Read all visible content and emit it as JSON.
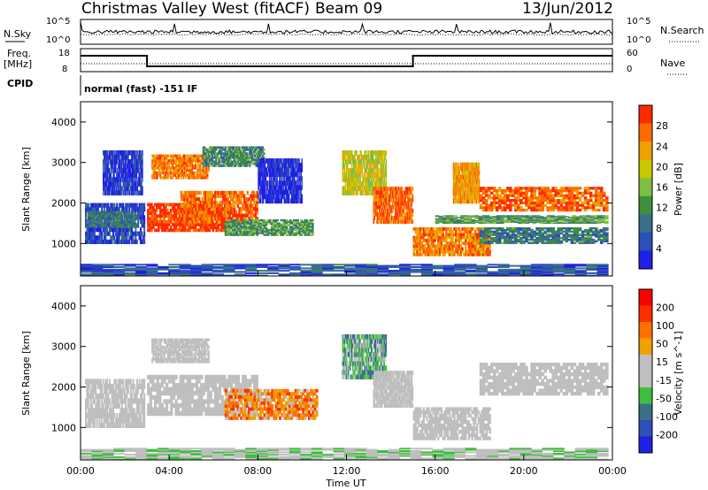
{
  "header": {
    "title": "Christmas Valley West (fitACF)",
    "beam": "Beam 09",
    "date": "13/Jun/2012"
  },
  "strips": {
    "nsky_label": "N.Sky",
    "nsky_ticks": [
      "10^5",
      "10^0"
    ],
    "nsearch_label": "N.Search",
    "nsearch_ticks": [
      "10^5",
      "10^0"
    ],
    "freq_label_1": "Freq.",
    "freq_label_2": "[MHz]",
    "freq_ticks": [
      "18",
      "8"
    ],
    "nave_label": "Nave",
    "nave_ticks": [
      "60",
      "0"
    ],
    "cpid_label": "CPID",
    "cpid_value": "normal (fast) -151 IF"
  },
  "colors": {
    "power_scale": [
      "#1f1fe6",
      "#2c4fb8",
      "#3a6f8a",
      "#3f8f3f",
      "#7fbf3f",
      "#c8c800",
      "#f0a000",
      "#ff6a00",
      "#ff2a00"
    ],
    "velocity_scale": [
      "#1f1fe6",
      "#2c4fb8",
      "#3a6f8a",
      "#3fbf3f",
      "#bfbfbf",
      "#bfbfbf",
      "#f0a000",
      "#ff7000",
      "#ff3000",
      "#ff0000"
    ]
  },
  "chart_data": [
    {
      "type": "heatmap",
      "name": "power",
      "ylabel": "Slant Range [km]",
      "xlabel": "Time UT",
      "xlim": [
        0,
        24
      ],
      "ylim": [
        200,
        4500
      ],
      "x_ticks": [
        "00:00",
        "04:00",
        "08:00",
        "12:00",
        "16:00",
        "20:00",
        "00:00"
      ],
      "y_ticks": [
        1000,
        2000,
        3000,
        4000
      ],
      "colorbar": {
        "label": "Power [dB]",
        "ticks": [
          "28",
          "24",
          "20",
          "16",
          "12",
          "8",
          "4"
        ]
      },
      "bands": [
        {
          "t0": 0.2,
          "t1": 2.9,
          "r0": 1000,
          "r1": 2000,
          "level": 0.15
        },
        {
          "t0": 0.3,
          "t1": 2.5,
          "r0": 1400,
          "r1": 1800,
          "level": 0.3
        },
        {
          "t0": 1.0,
          "t1": 2.8,
          "r0": 2200,
          "r1": 3300,
          "level": 0.1
        },
        {
          "t0": 3.0,
          "t1": 6.8,
          "r0": 1300,
          "r1": 2000,
          "level": 0.95
        },
        {
          "t0": 4.5,
          "t1": 8.0,
          "r0": 1500,
          "r1": 2300,
          "level": 0.85
        },
        {
          "t0": 3.2,
          "t1": 5.8,
          "r0": 2600,
          "r1": 3200,
          "level": 0.8
        },
        {
          "t0": 5.5,
          "t1": 8.3,
          "r0": 2900,
          "r1": 3400,
          "level": 0.35
        },
        {
          "t0": 6.5,
          "t1": 10.5,
          "r0": 1200,
          "r1": 1600,
          "level": 0.4
        },
        {
          "t0": 8.0,
          "t1": 10.0,
          "r0": 2000,
          "r1": 3100,
          "level": 0.05
        },
        {
          "t0": 11.8,
          "t1": 13.8,
          "r0": 2200,
          "r1": 3300,
          "level": 0.6
        },
        {
          "t0": 13.2,
          "t1": 15.0,
          "r0": 1500,
          "r1": 2400,
          "level": 0.85
        },
        {
          "t0": 15.0,
          "t1": 18.5,
          "r0": 700,
          "r1": 1400,
          "level": 0.8
        },
        {
          "t0": 16.8,
          "t1": 18.0,
          "r0": 2000,
          "r1": 3000,
          "level": 0.75
        },
        {
          "t0": 18.0,
          "t1": 23.8,
          "r0": 1800,
          "r1": 2400,
          "level": 0.85
        },
        {
          "t0": 18.0,
          "t1": 23.8,
          "r0": 1000,
          "r1": 1400,
          "level": 0.3
        },
        {
          "t0": 16.0,
          "t1": 23.8,
          "r0": 1500,
          "r1": 1700,
          "level": 0.4
        },
        {
          "t0": 0.0,
          "t1": 23.8,
          "r0": 200,
          "r1": 500,
          "level": 0.2
        }
      ]
    },
    {
      "type": "heatmap",
      "name": "velocity",
      "ylabel": "Slant Range [km]",
      "xlabel": "Time UT",
      "xlim": [
        0,
        24
      ],
      "ylim": [
        200,
        4500
      ],
      "x_ticks": [
        "00:00",
        "04:00",
        "08:00",
        "12:00",
        "16:00",
        "20:00",
        "00:00"
      ],
      "y_ticks": [
        1000,
        2000,
        3000,
        4000
      ],
      "colorbar": {
        "label": "Velocity [m s^-1]",
        "ticks": [
          "200",
          "100",
          "50",
          "15",
          "-15",
          "-50",
          "-100",
          "-200"
        ]
      },
      "bands": [
        {
          "t0": 0.2,
          "t1": 2.9,
          "r0": 1000,
          "r1": 2200,
          "level": 0.5
        },
        {
          "t0": 3.0,
          "t1": 8.0,
          "r0": 1300,
          "r1": 2300,
          "level": 0.5
        },
        {
          "t0": 3.2,
          "t1": 5.8,
          "r0": 2600,
          "r1": 3200,
          "level": 0.5
        },
        {
          "t0": 6.5,
          "t1": 10.7,
          "r0": 1200,
          "r1": 1950,
          "level": 0.7
        },
        {
          "t0": 11.8,
          "t1": 13.8,
          "r0": 2200,
          "r1": 3300,
          "level": 0.35
        },
        {
          "t0": 13.2,
          "t1": 15.0,
          "r0": 1500,
          "r1": 2400,
          "level": 0.5
        },
        {
          "t0": 15.0,
          "t1": 18.5,
          "r0": 700,
          "r1": 1500,
          "level": 0.5
        },
        {
          "t0": 18.0,
          "t1": 23.8,
          "r0": 1800,
          "r1": 2600,
          "level": 0.5
        },
        {
          "t0": 0.0,
          "t1": 23.8,
          "r0": 200,
          "r1": 500,
          "level": 0.45
        }
      ]
    }
  ]
}
